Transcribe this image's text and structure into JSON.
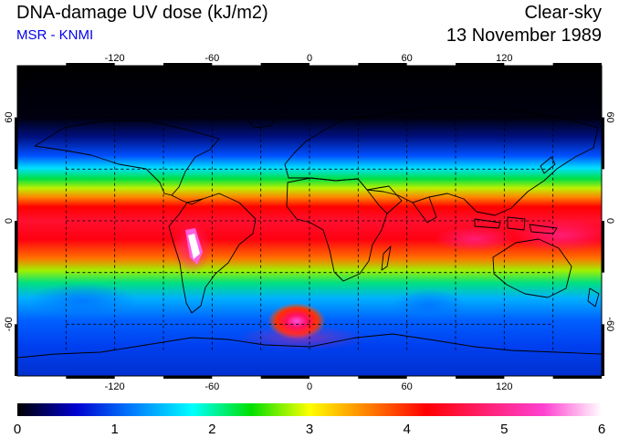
{
  "header": {
    "title": "DNA-damage UV dose (kJ/m2)",
    "source": "MSR - KNMI",
    "condition": "Clear-sky",
    "date": "13 November 1989"
  },
  "map": {
    "projection": "equirectangular",
    "lon_range": [
      -180,
      180
    ],
    "lat_range": [
      -90,
      90
    ],
    "lon_ticks": [
      -120,
      -60,
      0,
      60,
      120
    ],
    "lat_ticks": [
      60,
      0,
      -60
    ],
    "lon_tick_labels": [
      "-120",
      "-60",
      "0",
      "60",
      "120"
    ],
    "lat_tick_labels": [
      "60",
      "0",
      "-60"
    ],
    "grid": "dashed every 30 degrees",
    "value_range": [
      0,
      6
    ]
  },
  "colorbar": {
    "min": 0,
    "max": 6,
    "tick_labels": [
      "0",
      "1",
      "2",
      "3",
      "4",
      "5",
      "6"
    ],
    "colors": [
      "#000000",
      "#0000d0",
      "#0080ff",
      "#00ffff",
      "#00e000",
      "#ffff00",
      "#ff8000",
      "#ff0000",
      "#ff2070",
      "#ff40d0",
      "#ffffff"
    ]
  }
}
